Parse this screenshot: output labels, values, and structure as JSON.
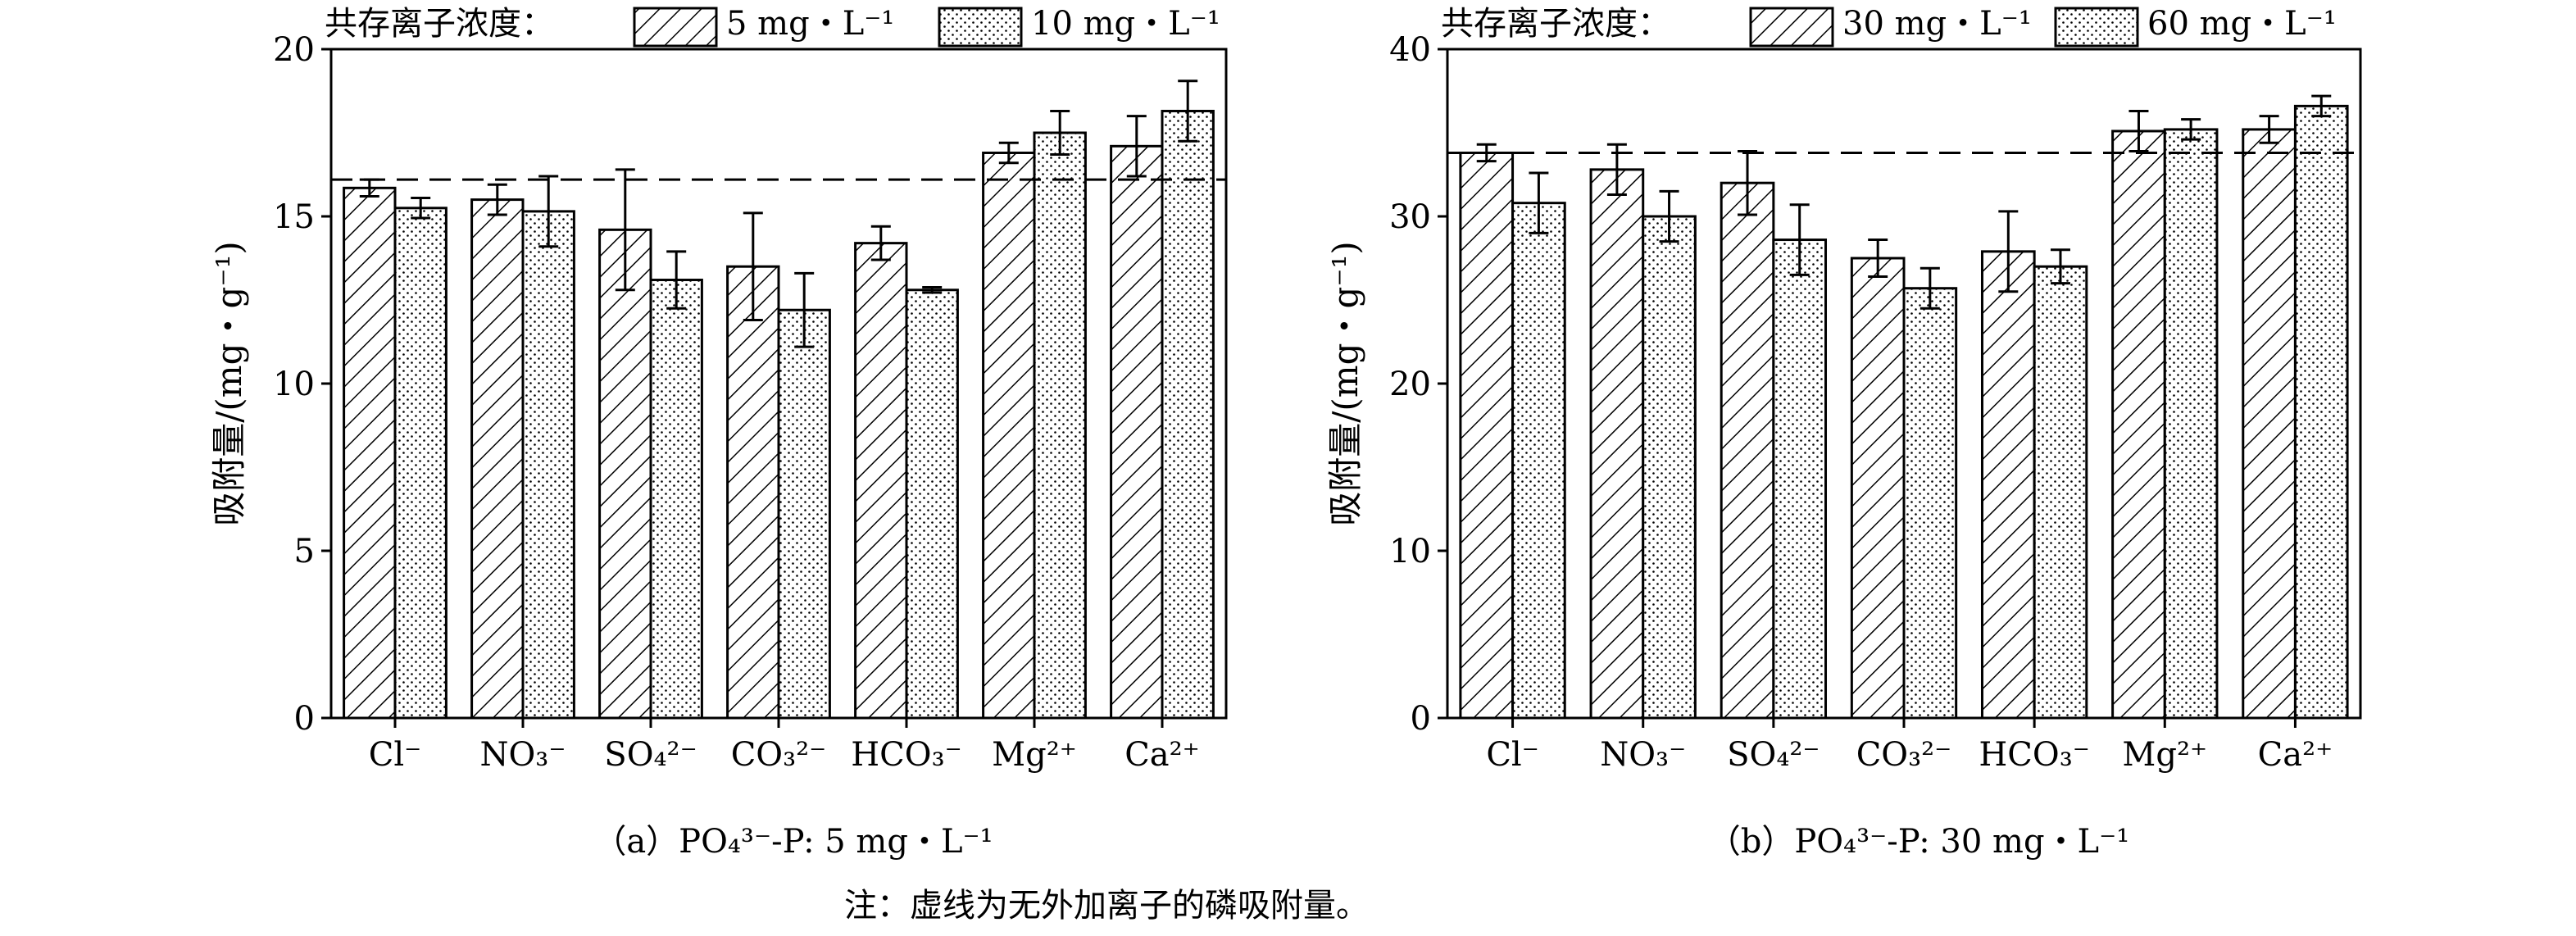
{
  "note": "注：虚线为无外加离子的磷吸附量。",
  "chart_data": [
    {
      "type": "bar",
      "caption": "（a）PO₄³⁻-P: 5 mg・L⁻¹",
      "ylabel": "吸附量/(mg・g⁻¹)",
      "ylim": [
        0,
        20
      ],
      "yticks": [
        0,
        5,
        10,
        15,
        20
      ],
      "categories": [
        "Cl⁻",
        "NO₃⁻",
        "SO₄²⁻",
        "CO₃²⁻",
        "HCO₃⁻",
        "Mg²⁺",
        "Ca²⁺"
      ],
      "legend_title": "共存离子浓度：",
      "legend_position": "top",
      "series": [
        {
          "name": "5 mg・L⁻¹",
          "pattern": "hatch",
          "values": [
            15.85,
            15.5,
            14.6,
            13.5,
            14.2,
            16.9,
            17.1
          ],
          "errors": [
            0.25,
            0.45,
            1.8,
            1.6,
            0.5,
            0.3,
            0.9
          ]
        },
        {
          "name": "10 mg・L⁻¹",
          "pattern": "dots",
          "values": [
            15.25,
            15.15,
            13.1,
            12.2,
            12.8,
            17.5,
            18.15
          ],
          "errors": [
            0.3,
            1.05,
            0.85,
            1.1,
            0.08,
            0.65,
            0.9
          ]
        }
      ],
      "reference_line": 16.1
    },
    {
      "type": "bar",
      "caption": "（b）PO₄³⁻-P: 30 mg・L⁻¹",
      "ylabel": "吸附量/(mg・g⁻¹)",
      "ylim": [
        0,
        40
      ],
      "yticks": [
        0,
        10,
        20,
        30,
        40
      ],
      "categories": [
        "Cl⁻",
        "NO₃⁻",
        "SO₄²⁻",
        "CO₃²⁻",
        "HCO₃⁻",
        "Mg²⁺",
        "Ca²⁺"
      ],
      "legend_title": "共存离子浓度：",
      "legend_position": "top",
      "series": [
        {
          "name": "30 mg・L⁻¹",
          "pattern": "hatch",
          "values": [
            33.8,
            32.8,
            32.0,
            27.5,
            27.9,
            35.1,
            35.2
          ],
          "errors": [
            0.5,
            1.5,
            1.9,
            1.1,
            2.4,
            1.2,
            0.8
          ]
        },
        {
          "name": "60 mg・L⁻¹",
          "pattern": "dots",
          "values": [
            30.8,
            30.0,
            28.6,
            25.7,
            27.0,
            35.2,
            36.6
          ],
          "errors": [
            1.8,
            1.5,
            2.1,
            1.2,
            1.0,
            0.6,
            0.6
          ]
        }
      ],
      "reference_line": 33.8
    }
  ]
}
